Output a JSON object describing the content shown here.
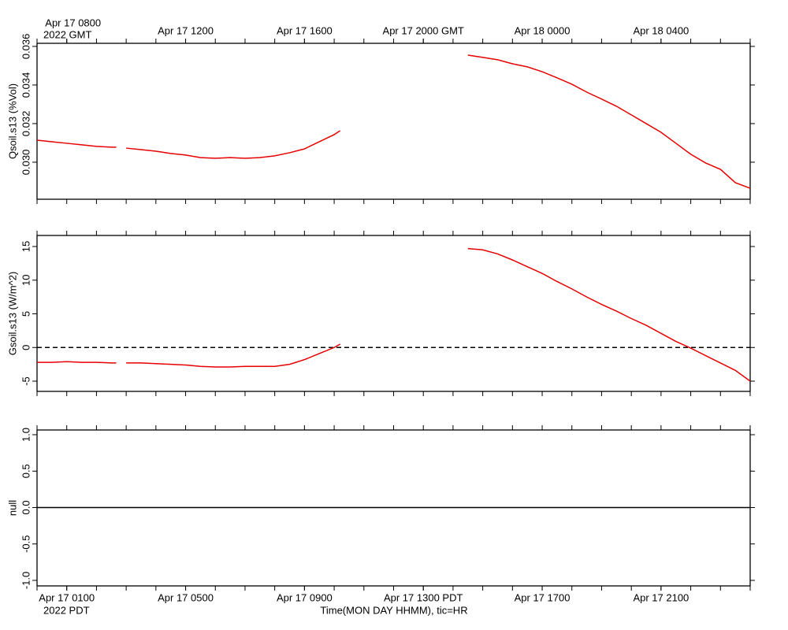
{
  "chart_data": [
    {
      "type": "line",
      "ylabel": "Qsoil.s13 (%Vol)",
      "x_note": "2022 GMT",
      "xlim": [
        "2022-04-17T07:00Z",
        "2022-04-18T07:00Z"
      ],
      "xticks": [
        {
          "value": "2022-04-17T08:00Z",
          "label": "Apr 17 0800"
        },
        {
          "value": "2022-04-17T12:00Z",
          "label": "Apr 17 1200"
        },
        {
          "value": "2022-04-17T16:00Z",
          "label": "Apr 17 1600"
        },
        {
          "value": "2022-04-17T20:00Z",
          "label": "Apr 17 2000 GMT"
        },
        {
          "value": "2022-04-18T00:00Z",
          "label": "Apr 18 0000"
        },
        {
          "value": "2022-04-18T04:00Z",
          "label": "Apr 18 0400"
        }
      ],
      "xticks_minor": [
        "2022-04-17T07:00Z",
        "2022-04-17T08:00Z",
        "2022-04-17T09:00Z",
        "2022-04-17T10:00Z",
        "2022-04-17T11:00Z",
        "2022-04-17T12:00Z",
        "2022-04-17T13:00Z",
        "2022-04-17T14:00Z",
        "2022-04-17T15:00Z",
        "2022-04-17T16:00Z",
        "2022-04-17T17:00Z",
        "2022-04-17T18:00Z",
        "2022-04-17T19:00Z",
        "2022-04-17T20:00Z",
        "2022-04-17T21:00Z",
        "2022-04-17T22:00Z",
        "2022-04-17T23:00Z",
        "2022-04-18T00:00Z",
        "2022-04-18T01:00Z",
        "2022-04-18T02:00Z",
        "2022-04-18T03:00Z",
        "2022-04-18T04:00Z",
        "2022-04-18T05:00Z",
        "2022-04-18T06:00Z",
        "2022-04-18T07:00Z"
      ],
      "ylim": [
        0.02808,
        0.03616
      ],
      "yticks": [
        {
          "value": 0.03,
          "label": "0.030"
        },
        {
          "value": 0.032,
          "label": "0.032"
        },
        {
          "value": 0.034,
          "label": "0.034"
        },
        {
          "value": 0.036,
          "label": "0.036"
        }
      ],
      "x": [
        "2022-04-17T07:00Z",
        "2022-04-17T07:30Z",
        "2022-04-17T08:00Z",
        "2022-04-17T08:30Z",
        "2022-04-17T09:00Z",
        "2022-04-17T09:30Z",
        "2022-04-17T09:40Z",
        "2022-04-17T09:50Z",
        "2022-04-17T10:00Z",
        "2022-04-17T10:30Z",
        "2022-04-17T11:00Z",
        "2022-04-17T11:30Z",
        "2022-04-17T12:00Z",
        "2022-04-17T12:30Z",
        "2022-04-17T13:00Z",
        "2022-04-17T13:30Z",
        "2022-04-17T14:00Z",
        "2022-04-17T14:30Z",
        "2022-04-17T15:00Z",
        "2022-04-17T15:30Z",
        "2022-04-17T16:00Z",
        "2022-04-17T16:30Z",
        "2022-04-17T17:00Z",
        "2022-04-17T17:12Z",
        "2022-04-17T19:00Z",
        "2022-04-17T21:30Z",
        "2022-04-17T22:00Z",
        "2022-04-17T22:30Z",
        "2022-04-17T23:00Z",
        "2022-04-17T23:30Z",
        "2022-04-18T00:00Z",
        "2022-04-18T00:30Z",
        "2022-04-18T01:00Z",
        "2022-04-18T01:30Z",
        "2022-04-18T02:00Z",
        "2022-04-18T02:30Z",
        "2022-04-18T03:00Z",
        "2022-04-18T03:30Z",
        "2022-04-18T04:00Z",
        "2022-04-18T04:30Z",
        "2022-04-18T05:00Z",
        "2022-04-18T05:30Z",
        "2022-04-18T06:00Z",
        "2022-04-18T06:30Z",
        "2022-04-18T07:00Z"
      ],
      "series": [
        {
          "color": "#e60000",
          "values": [
            0.03114,
            0.03106,
            0.03098,
            0.0309,
            0.03082,
            0.03078,
            0.03078,
            null,
            0.03073,
            0.03065,
            0.03057,
            0.03045,
            0.03037,
            0.03024,
            0.0302,
            0.03024,
            0.0302,
            0.03024,
            0.03033,
            0.03049,
            0.03069,
            0.03106,
            0.03143,
            0.03163,
            null,
            0.03555,
            0.03543,
            0.03531,
            0.0351,
            0.03494,
            0.03469,
            0.03437,
            0.03404,
            0.03363,
            0.03327,
            0.0329,
            0.03245,
            0.032,
            0.03155,
            0.03098,
            0.03041,
            0.02996,
            0.02963,
            0.02894,
            0.02865
          ]
        }
      ],
      "hlines": []
    },
    {
      "type": "line",
      "ylabel": "Gsoil.s13 (W/m^2)",
      "ylim": [
        -6.52,
        16.64
      ],
      "yticks": [
        -5,
        0,
        5,
        10,
        15
      ],
      "x": [
        "2022-04-17T07:00Z",
        "2022-04-17T07:30Z",
        "2022-04-17T08:00Z",
        "2022-04-17T08:30Z",
        "2022-04-17T09:00Z",
        "2022-04-17T09:30Z",
        "2022-04-17T09:40Z",
        "2022-04-17T09:50Z",
        "2022-04-17T10:00Z",
        "2022-04-17T10:30Z",
        "2022-04-17T11:00Z",
        "2022-04-17T11:30Z",
        "2022-04-17T12:00Z",
        "2022-04-17T12:30Z",
        "2022-04-17T13:00Z",
        "2022-04-17T13:30Z",
        "2022-04-17T14:00Z",
        "2022-04-17T14:30Z",
        "2022-04-17T15:00Z",
        "2022-04-17T15:30Z",
        "2022-04-17T16:00Z",
        "2022-04-17T16:30Z",
        "2022-04-17T17:00Z",
        "2022-04-17T17:12Z",
        "2022-04-17T19:00Z",
        "2022-04-17T21:30Z",
        "2022-04-17T22:00Z",
        "2022-04-17T22:30Z",
        "2022-04-17T23:00Z",
        "2022-04-17T23:30Z",
        "2022-04-18T00:00Z",
        "2022-04-18T00:30Z",
        "2022-04-18T01:00Z",
        "2022-04-18T01:30Z",
        "2022-04-18T02:00Z",
        "2022-04-18T02:30Z",
        "2022-04-18T03:00Z",
        "2022-04-18T03:30Z",
        "2022-04-18T04:00Z",
        "2022-04-18T04:30Z",
        "2022-04-18T05:00Z",
        "2022-04-18T05:30Z",
        "2022-04-18T06:00Z",
        "2022-04-18T06:30Z",
        "2022-04-18T07:00Z"
      ],
      "series": [
        {
          "color": "#e60000",
          "values": [
            -2.2,
            -2.2,
            -2.1,
            -2.2,
            -2.2,
            -2.3,
            -2.3,
            null,
            -2.3,
            -2.3,
            -2.4,
            -2.5,
            -2.6,
            -2.8,
            -2.9,
            -2.9,
            -2.8,
            -2.8,
            -2.8,
            -2.5,
            -1.8,
            -0.9,
            0,
            0.5,
            null,
            14.7,
            14.5,
            13.9,
            13.0,
            12.0,
            11.0,
            9.8,
            8.7,
            7.5,
            6.4,
            5.4,
            4.3,
            3.3,
            2.1,
            0.9,
            -0.1,
            -1.2,
            -2.3,
            -3.4,
            -5.0
          ]
        }
      ],
      "hlines": [
        {
          "value": 0,
          "style": "dashed",
          "color": "#000000"
        }
      ]
    },
    {
      "type": "line",
      "ylabel": "null",
      "x_note": "2022 PDT",
      "xlabel": "Time(MON DAY HHMM), tic=HR",
      "xticks": [
        {
          "value": "2022-04-17T08:00Z",
          "label": "Apr 17 0100"
        },
        {
          "value": "2022-04-17T12:00Z",
          "label": "Apr 17 0500"
        },
        {
          "value": "2022-04-17T16:00Z",
          "label": "Apr 17 0900"
        },
        {
          "value": "2022-04-17T20:00Z",
          "label": "Apr 17 1300 PDT"
        },
        {
          "value": "2022-04-18T00:00Z",
          "label": "Apr 17 1700"
        },
        {
          "value": "2022-04-18T04:00Z",
          "label": "Apr 17 2100"
        }
      ],
      "ylim": [
        -1.076,
        1.065
      ],
      "yticks": [
        {
          "value": -1,
          "label": "-1.0"
        },
        {
          "value": -0.5,
          "label": "-0.5"
        },
        {
          "value": 0,
          "label": "0.0"
        },
        {
          "value": 0.5,
          "label": "0.5"
        },
        {
          "value": 1,
          "label": "1.0"
        }
      ],
      "series": [],
      "hlines": [
        {
          "value": 0,
          "style": "solid",
          "color": "#000000"
        }
      ]
    }
  ]
}
